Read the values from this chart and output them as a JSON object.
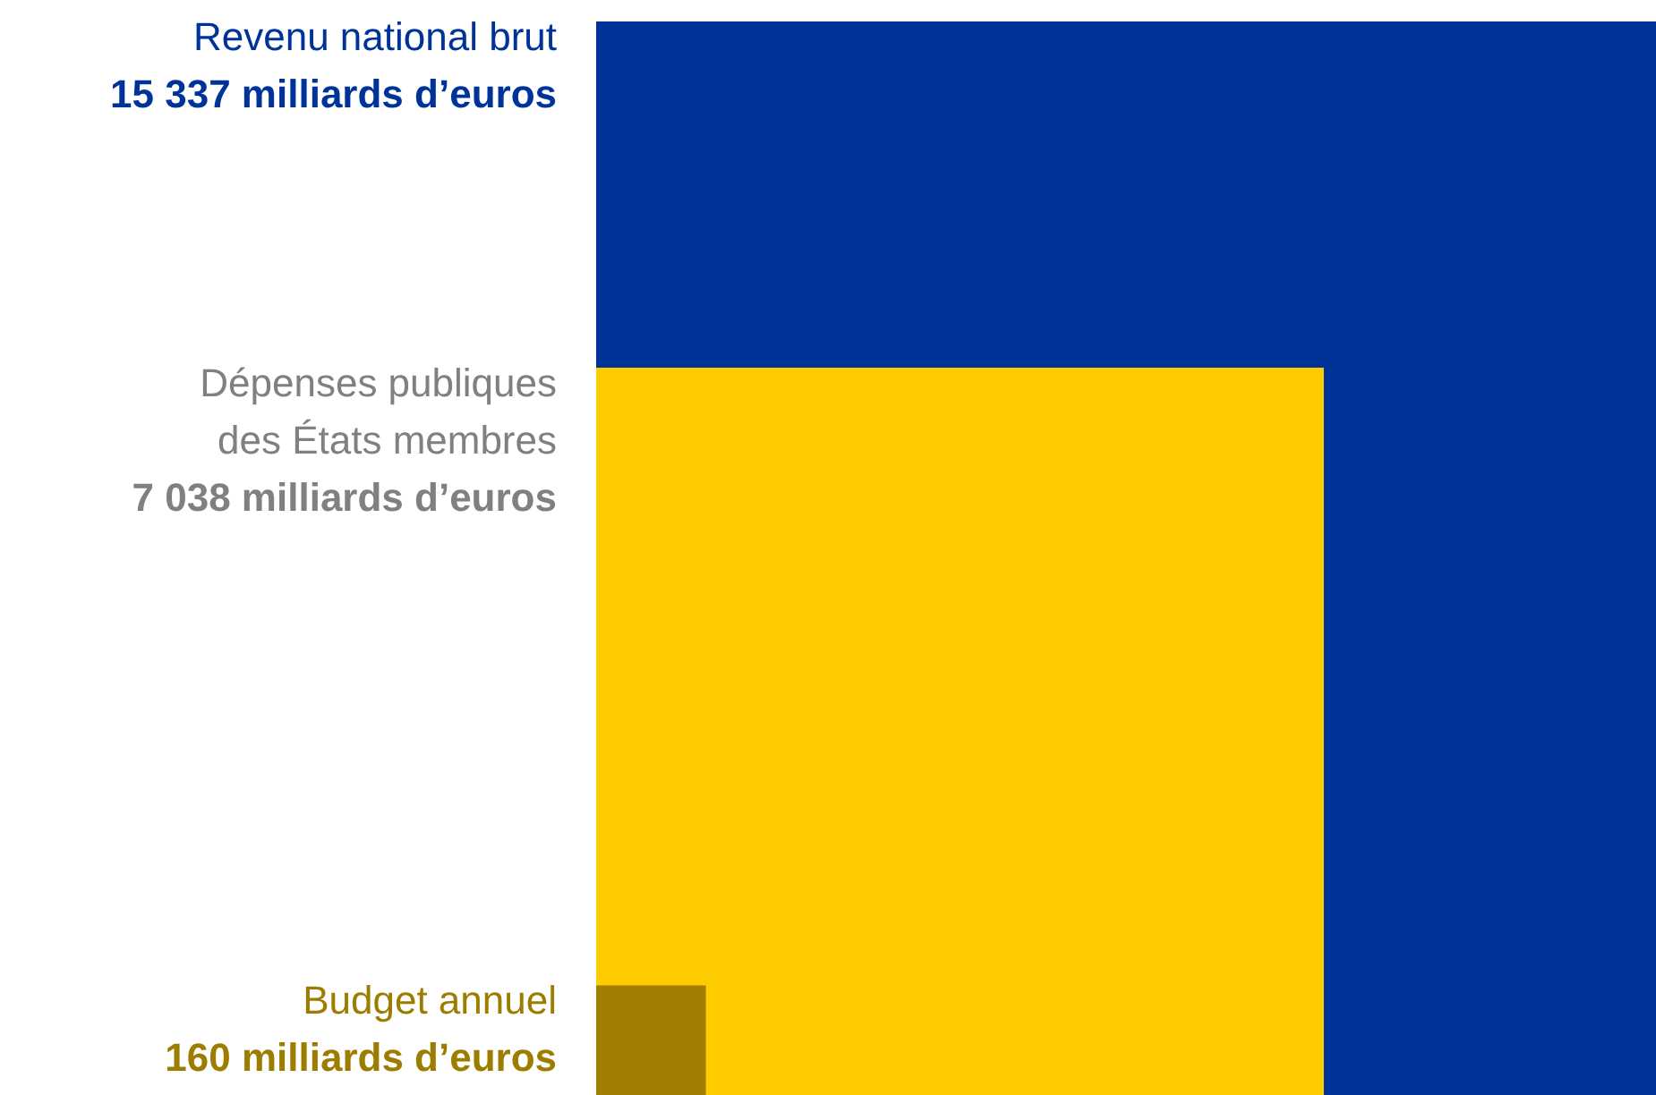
{
  "chart_data": {
    "type": "other",
    "categories": [
      "Revenu national brut",
      "Dépenses publiques\ndes États membres",
      "Budget annuel"
    ],
    "values": [
      15337,
      7038,
      160
    ],
    "value_labels": [
      "15 337 milliards d’euros",
      "7 038 milliards d’euros",
      "160 milliards d’euros"
    ],
    "colors": [
      "#003399",
      "#ffcc00",
      "#a07e00"
    ]
  }
}
